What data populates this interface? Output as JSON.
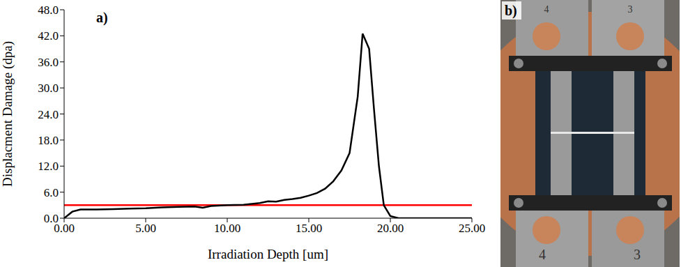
{
  "chart_data": {
    "type": "line",
    "annotation": "a)",
    "x_label": "Irradiation Depth [um]",
    "y_label": "Displacment Damage (dpa)",
    "x": [
      0,
      0.5,
      1,
      2,
      3,
      4,
      5,
      6,
      7,
      8,
      8.5,
      9,
      10,
      11,
      12,
      12.5,
      13,
      13.5,
      14,
      14.5,
      15,
      15.5,
      16,
      16.5,
      17,
      17.5,
      18,
      18.3,
      18.7,
      19,
      19.3,
      19.6,
      20,
      20.5,
      25
    ],
    "series": [
      {
        "color": "#000000",
        "values": [
          0,
          1.5,
          2,
          2,
          2.1,
          2.2,
          2.3,
          2.5,
          2.6,
          2.7,
          2.4,
          2.8,
          3,
          3.1,
          3.5,
          3.9,
          3.8,
          4.2,
          4.4,
          4.7,
          5.2,
          5.8,
          6.8,
          8.5,
          11,
          15,
          28,
          42.5,
          39,
          25,
          12,
          3,
          0.5,
          0,
          0
        ]
      }
    ],
    "reference_line": {
      "value": 3,
      "color": "#ff0000"
    },
    "xlim": [
      0,
      25
    ],
    "xticks": [
      {
        "value": 0,
        "label": "0.00"
      },
      {
        "value": 5,
        "label": "5.00"
      },
      {
        "value": 10,
        "label": "10.00"
      },
      {
        "value": 15,
        "label": "15.00"
      },
      {
        "value": 20,
        "label": "20.00"
      },
      {
        "value": 25,
        "label": "25.00"
      }
    ],
    "ylim": [
      0,
      48
    ],
    "yticks": [
      {
        "value": 0,
        "label": "0.0"
      },
      {
        "value": 6,
        "label": "6.0"
      },
      {
        "value": 12,
        "label": "12.0"
      },
      {
        "value": 18,
        "label": "18.0"
      },
      {
        "value": 24,
        "label": "24.0"
      },
      {
        "value": 30,
        "label": "30.0"
      },
      {
        "value": 36,
        "label": "36.0"
      },
      {
        "value": 42,
        "label": "42.0"
      },
      {
        "value": 48,
        "label": "48.0"
      }
    ]
  },
  "photo": {
    "label": "b)",
    "plate_labels": [
      "4",
      "3",
      "4",
      "3"
    ]
  }
}
